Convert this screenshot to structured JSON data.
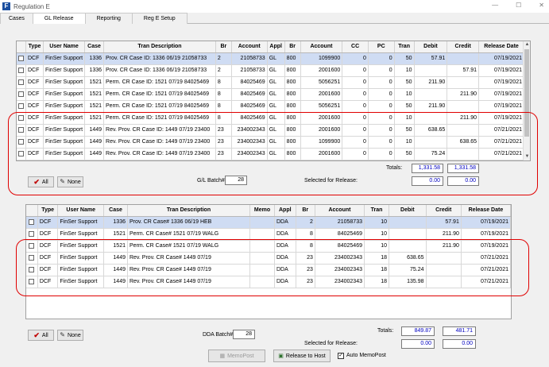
{
  "window": {
    "title": "Regulation E",
    "icon_letter": "F"
  },
  "tabs": [
    {
      "label": "Cases"
    },
    {
      "label": "GL Release",
      "active": true
    },
    {
      "label": "Reporting"
    },
    {
      "label": "Reg E Setup"
    }
  ],
  "gl": {
    "headers": [
      "",
      "Type",
      "User Name",
      "Case",
      "Tran Description",
      "Br",
      "Account",
      "Appl",
      "Br",
      "Account",
      "CC",
      "PC",
      "Tran",
      "Debit",
      "Credit",
      "Release Date"
    ],
    "rows": [
      [
        "DCF",
        "FinSer Support",
        "1336",
        "Prov. CR Case ID: 1336 06/19 21058733",
        "2",
        "21058733",
        "GL",
        "800",
        "1099900",
        "0",
        "0",
        "50",
        "57.91",
        "",
        "07/19/2021"
      ],
      [
        "DCF",
        "FinSer Support",
        "1336",
        "Prov. CR Case ID: 1336 06/19 21058733",
        "2",
        "21058733",
        "GL",
        "800",
        "2001600",
        "0",
        "0",
        "10",
        "",
        "57.91",
        "07/19/2021"
      ],
      [
        "DCF",
        "FinSer Support",
        "1521",
        "Perm. CR Case ID: 1521 07/19 84025469",
        "8",
        "84025469",
        "GL",
        "800",
        "5056251",
        "0",
        "0",
        "50",
        "211.90",
        "",
        "07/19/2021"
      ],
      [
        "DCF",
        "FinSer Support",
        "1521",
        "Perm. CR Case ID: 1521 07/19 84025469",
        "8",
        "84025469",
        "GL",
        "800",
        "2001600",
        "0",
        "0",
        "10",
        "",
        "211.90",
        "07/19/2021"
      ],
      [
        "DCF",
        "FinSer Support",
        "1521",
        "Perm. CR Case ID: 1521 07/19 84025469",
        "8",
        "84025469",
        "GL",
        "800",
        "5056251",
        "0",
        "0",
        "50",
        "211.90",
        "",
        "07/19/2021"
      ],
      [
        "DCF",
        "FinSer Support",
        "1521",
        "Perm. CR Case ID: 1521 07/19 84025469",
        "8",
        "84025469",
        "GL",
        "800",
        "2001600",
        "0",
        "0",
        "10",
        "",
        "211.90",
        "07/19/2021"
      ],
      [
        "DCF",
        "FinSer Support",
        "1449",
        "Rev. Prov. CR Case ID: 1449 07/19 23400",
        "23",
        "234002343",
        "GL",
        "800",
        "2001600",
        "0",
        "0",
        "50",
        "638.65",
        "",
        "07/21/2021"
      ],
      [
        "DCF",
        "FinSer Support",
        "1449",
        "Rev. Prov. CR Case ID: 1449 07/19 23400",
        "23",
        "234002343",
        "GL",
        "800",
        "1099900",
        "0",
        "0",
        "10",
        "",
        "638.65",
        "07/21/2021"
      ],
      [
        "DCF",
        "FinSer Support",
        "1449",
        "Rev. Prov. CR Case ID: 1449 07/19 23400",
        "23",
        "234002343",
        "GL",
        "800",
        "2001600",
        "0",
        "0",
        "50",
        "75.24",
        "",
        "07/21/2021"
      ]
    ],
    "totals_label": "Totals:",
    "total_debit": "1,331.58",
    "total_credit": "1,331.58",
    "selected_label": "Selected for Release:",
    "selected_debit": "0.00",
    "selected_credit": "0.00",
    "batch_label": "G/L Batch#",
    "batch_value": "28",
    "all_label": "All",
    "none_label": "None"
  },
  "dda": {
    "headers": [
      "",
      "Type",
      "User Name",
      "Case",
      "Tran Description",
      "Memo",
      "Appl",
      "Br",
      "Account",
      "Tran",
      "Debit",
      "Credit",
      "Release Date"
    ],
    "rows": [
      [
        "DCF",
        "FinSer Support",
        "1336",
        "Prov. CR Case# 1336 06/19 HEB",
        "",
        "DDA",
        "2",
        "21058733",
        "10",
        "",
        "57.91",
        "07/19/2021"
      ],
      [
        "DCF",
        "FinSer Support",
        "1521",
        "Perm. CR Case# 1521 07/19 WALG",
        "",
        "DDA",
        "8",
        "84025469",
        "10",
        "",
        "211.90",
        "07/19/2021"
      ],
      [
        "DCF",
        "FinSer Support",
        "1521",
        "Perm. CR Case# 1521 07/19 WALG",
        "",
        "DDA",
        "8",
        "84025469",
        "10",
        "",
        "211.90",
        "07/19/2021"
      ],
      [
        "DCF",
        "FinSer Support",
        "1449",
        "Rev. Prov. CR Case# 1449 07/19",
        "",
        "DDA",
        "23",
        "234002343",
        "18",
        "638.65",
        "",
        "07/21/2021"
      ],
      [
        "DCF",
        "FinSer Support",
        "1449",
        "Rev. Prov. CR Case# 1449 07/19",
        "",
        "DDA",
        "23",
        "234002343",
        "18",
        "75.24",
        "",
        "07/21/2021"
      ],
      [
        "DCF",
        "FinSer Support",
        "1449",
        "Rev. Prov. CR Case# 1449 07/19",
        "",
        "DDA",
        "23",
        "234002343",
        "18",
        "135.98",
        "",
        "07/21/2021"
      ]
    ],
    "totals_label": "Totals:",
    "total_debit": "849.87",
    "total_credit": "481.71",
    "selected_label": "Selected for Release:",
    "selected_debit": "0.00",
    "selected_credit": "0.00",
    "batch_label": "DDA Batch#",
    "batch_value": "28",
    "all_label": "All",
    "none_label": "None"
  },
  "actions": {
    "memopost_label": "MemoPost",
    "release_label": "Release to Host",
    "auto_memopost_label": "Auto MemoPost",
    "auto_memopost_checked": true
  },
  "colors": {
    "highlight_ring": "#e00000",
    "selected_row": "#cfdcf3",
    "totals_text": "#0000c0"
  }
}
